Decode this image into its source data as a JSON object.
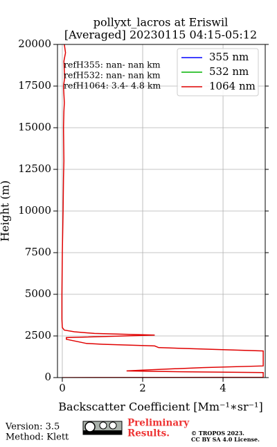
{
  "chart_data": {
    "type": "line",
    "title": "pollyxt_lacros at Eriswil",
    "subtitle": "[Averaged] 20230115 04:15-05:12",
    "xlabel": "Backscatter Coefficient [Mm⁻¹∗sr⁻¹]",
    "ylabel": "Height (m)",
    "annotations": [
      "refH355:  nan- nan km",
      "refH532:  nan- nan km",
      "refH1064:  3.4- 4.8 km"
    ],
    "y": [
      20000,
      19500,
      19000,
      18000,
      17500,
      16500,
      16000,
      15000,
      13000,
      12000,
      10000,
      7500,
      5000,
      3500,
      3000,
      2850,
      2750,
      2650,
      2550,
      2400,
      2300,
      2200,
      2050,
      2000,
      1900,
      1800,
      1600,
      700,
      600,
      450,
      400,
      350,
      300,
      250,
      20,
      0
    ],
    "series": [
      {
        "name": "355 nm",
        "color": "#0000ff",
        "values": [
          null,
          null,
          null,
          null,
          null,
          null,
          null,
          null,
          null,
          null,
          null,
          null,
          null,
          null,
          null,
          null,
          null,
          null,
          null,
          null,
          null,
          null,
          null,
          null,
          null,
          null,
          null,
          null,
          null,
          null,
          null,
          null,
          null,
          null,
          null,
          null
        ]
      },
      {
        "name": "532 nm",
        "color": "#00b400",
        "values": [
          null,
          null,
          null,
          null,
          null,
          null,
          null,
          null,
          null,
          null,
          null,
          null,
          null,
          null,
          null,
          null,
          null,
          null,
          null,
          null,
          null,
          null,
          null,
          null,
          null,
          null,
          null,
          null,
          null,
          null,
          null,
          null,
          null,
          null,
          null,
          null
        ]
      },
      {
        "name": "1064 nm",
        "color": "#e00000",
        "values": [
          0.05,
          0.08,
          0.04,
          0.06,
          0.03,
          0.05,
          0.04,
          0.03,
          0.04,
          0.03,
          0.02,
          0.0,
          -0.01,
          -0.01,
          0.0,
          0.05,
          0.3,
          0.8,
          2.3,
          0.1,
          0.1,
          0.3,
          0.6,
          1.0,
          2.3,
          2.4,
          5.0,
          5.0,
          3.5,
          2.0,
          1.6,
          3.0,
          5.0,
          5.0,
          5.0,
          0.0
        ]
      }
    ],
    "xlim": [
      -0.12,
      5.05
    ],
    "xticks": [
      0,
      2,
      4
    ],
    "ylim": [
      0,
      20000
    ],
    "yticks": [
      0,
      2500,
      5000,
      7500,
      10000,
      12500,
      15000,
      17500,
      20000
    ],
    "grid": true,
    "legend": "upper right"
  },
  "footer": {
    "version": "Version: 3.5",
    "method": "Method: Klett",
    "notice": [
      "Preliminary",
      "Results."
    ],
    "license": [
      "© TROPOS 2023.",
      "CC BY SA 4.0 License."
    ]
  }
}
